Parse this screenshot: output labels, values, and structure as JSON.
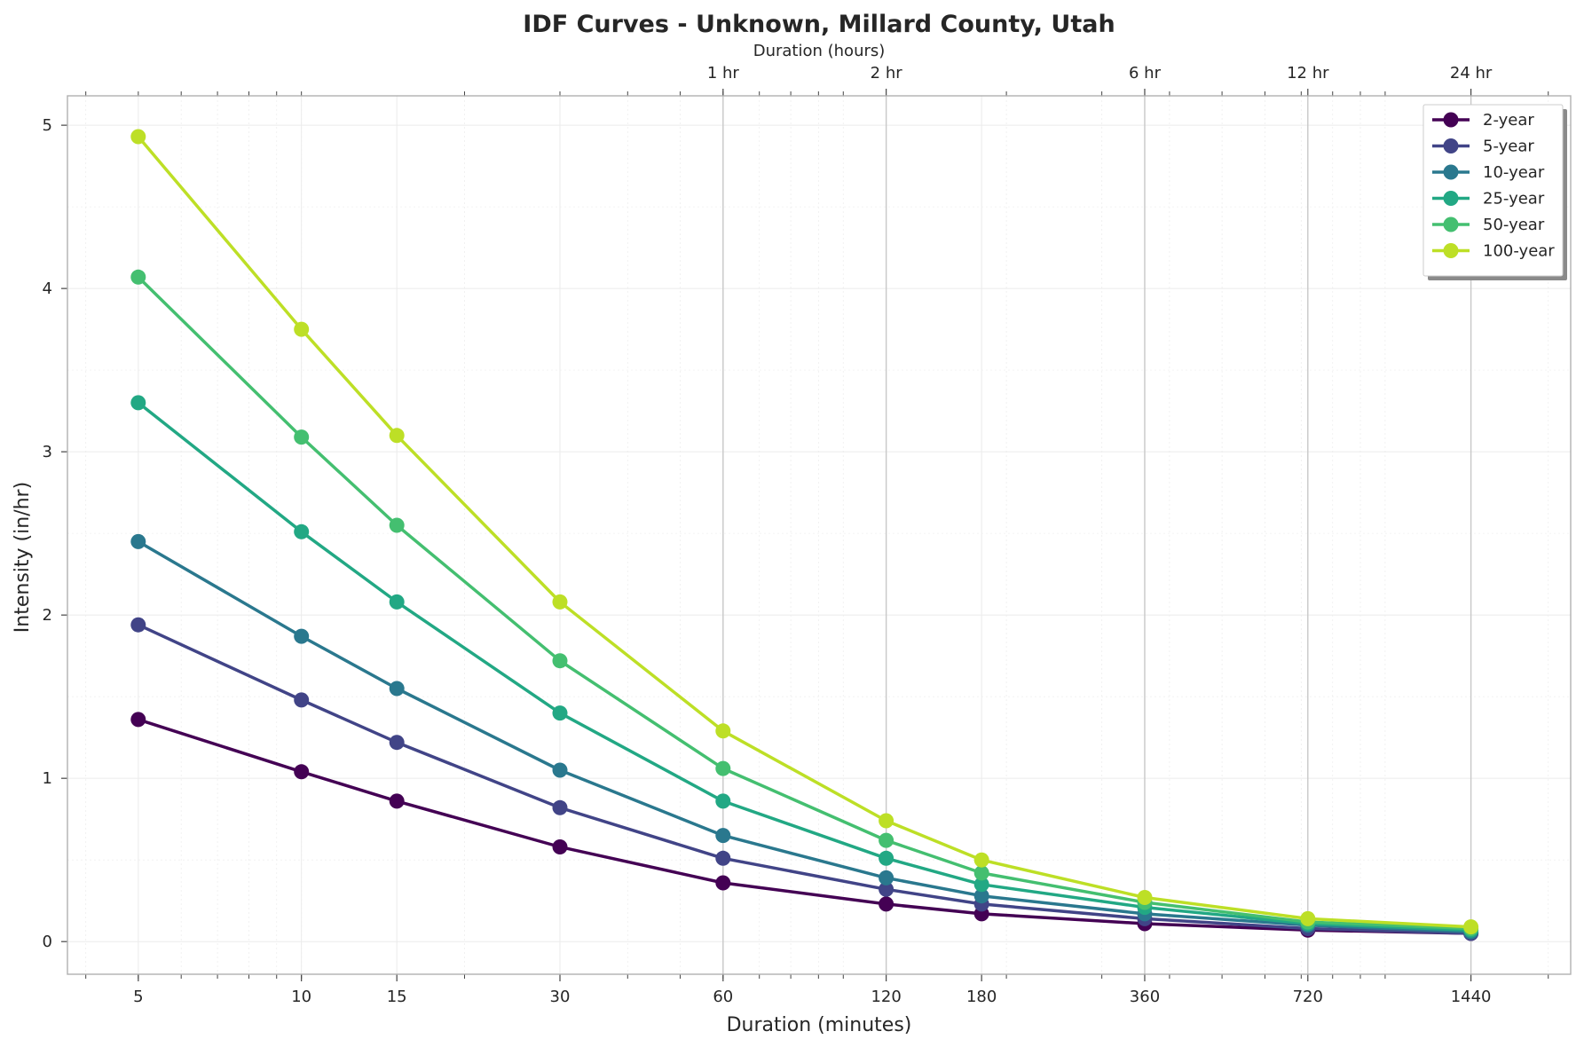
{
  "chart_data": {
    "type": "line",
    "title": "IDF Curves - Unknown, Millard County, Utah",
    "xlabel": "Duration (minutes)",
    "ylabel": "Intensity (in/hr)",
    "top_xlabel": "Duration (hours)",
    "x_scale": "log",
    "xlim": [
      3.7,
      2200
    ],
    "ylim": [
      -0.2,
      5.18
    ],
    "x": [
      5,
      10,
      15,
      30,
      60,
      120,
      180,
      360,
      720,
      1440
    ],
    "x_tick_labels": [
      "5",
      "10",
      "15",
      "30",
      "60",
      "120",
      "180",
      "360",
      "720",
      "1440"
    ],
    "y_ticks": [
      0,
      1,
      2,
      3,
      4,
      5
    ],
    "top_ticks": [
      {
        "value": 60,
        "label": "1 hr"
      },
      {
        "value": 120,
        "label": "2 hr"
      },
      {
        "value": 360,
        "label": "6 hr"
      },
      {
        "value": 720,
        "label": "12 hr"
      },
      {
        "value": 1440,
        "label": "24 hr"
      }
    ],
    "grid": true,
    "legend_position": "top-right",
    "series": [
      {
        "name": "2-year",
        "color": "#440154",
        "values": [
          1.36,
          1.04,
          0.86,
          0.58,
          0.36,
          0.23,
          0.17,
          0.11,
          0.07,
          0.05
        ]
      },
      {
        "name": "5-year",
        "color": "#414487",
        "values": [
          1.94,
          1.48,
          1.22,
          0.82,
          0.51,
          0.32,
          0.23,
          0.14,
          0.08,
          0.05
        ]
      },
      {
        "name": "10-year",
        "color": "#2a788e",
        "values": [
          2.45,
          1.87,
          1.55,
          1.05,
          0.65,
          0.39,
          0.28,
          0.17,
          0.1,
          0.06
        ]
      },
      {
        "name": "25-year",
        "color": "#22a884",
        "values": [
          3.3,
          2.51,
          2.08,
          1.4,
          0.86,
          0.51,
          0.35,
          0.21,
          0.11,
          0.07
        ]
      },
      {
        "name": "50-year",
        "color": "#44bf70",
        "values": [
          4.07,
          3.09,
          2.55,
          1.72,
          1.06,
          0.62,
          0.42,
          0.24,
          0.12,
          0.08
        ]
      },
      {
        "name": "100-year",
        "color": "#bddf26",
        "values": [
          4.93,
          3.75,
          3.1,
          2.08,
          1.29,
          0.74,
          0.5,
          0.27,
          0.14,
          0.09
        ]
      }
    ]
  }
}
